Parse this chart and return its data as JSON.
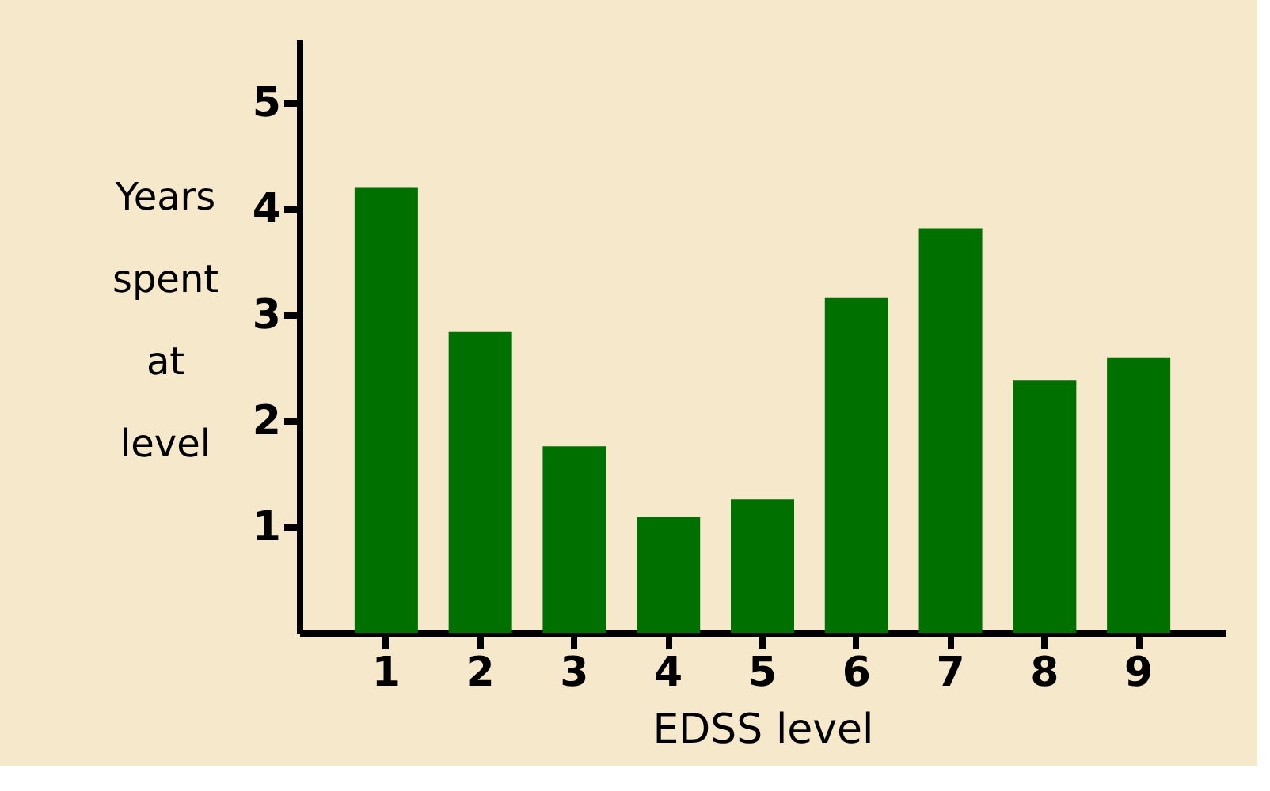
{
  "chart_data": {
    "type": "bar",
    "xlabel": "EDSS level",
    "ylabel": "Years spent at level",
    "categories": [
      "1",
      "2",
      "3",
      "4",
      "5",
      "6",
      "7",
      "8",
      "9"
    ],
    "values": [
      4.2,
      2.84,
      1.76,
      1.09,
      1.26,
      3.16,
      3.82,
      2.38,
      2.6
    ],
    "color": "#007000",
    "ylim": [
      0,
      5.6
    ],
    "yticks": [
      1,
      2,
      3,
      4,
      5
    ],
    "grid": false
  }
}
